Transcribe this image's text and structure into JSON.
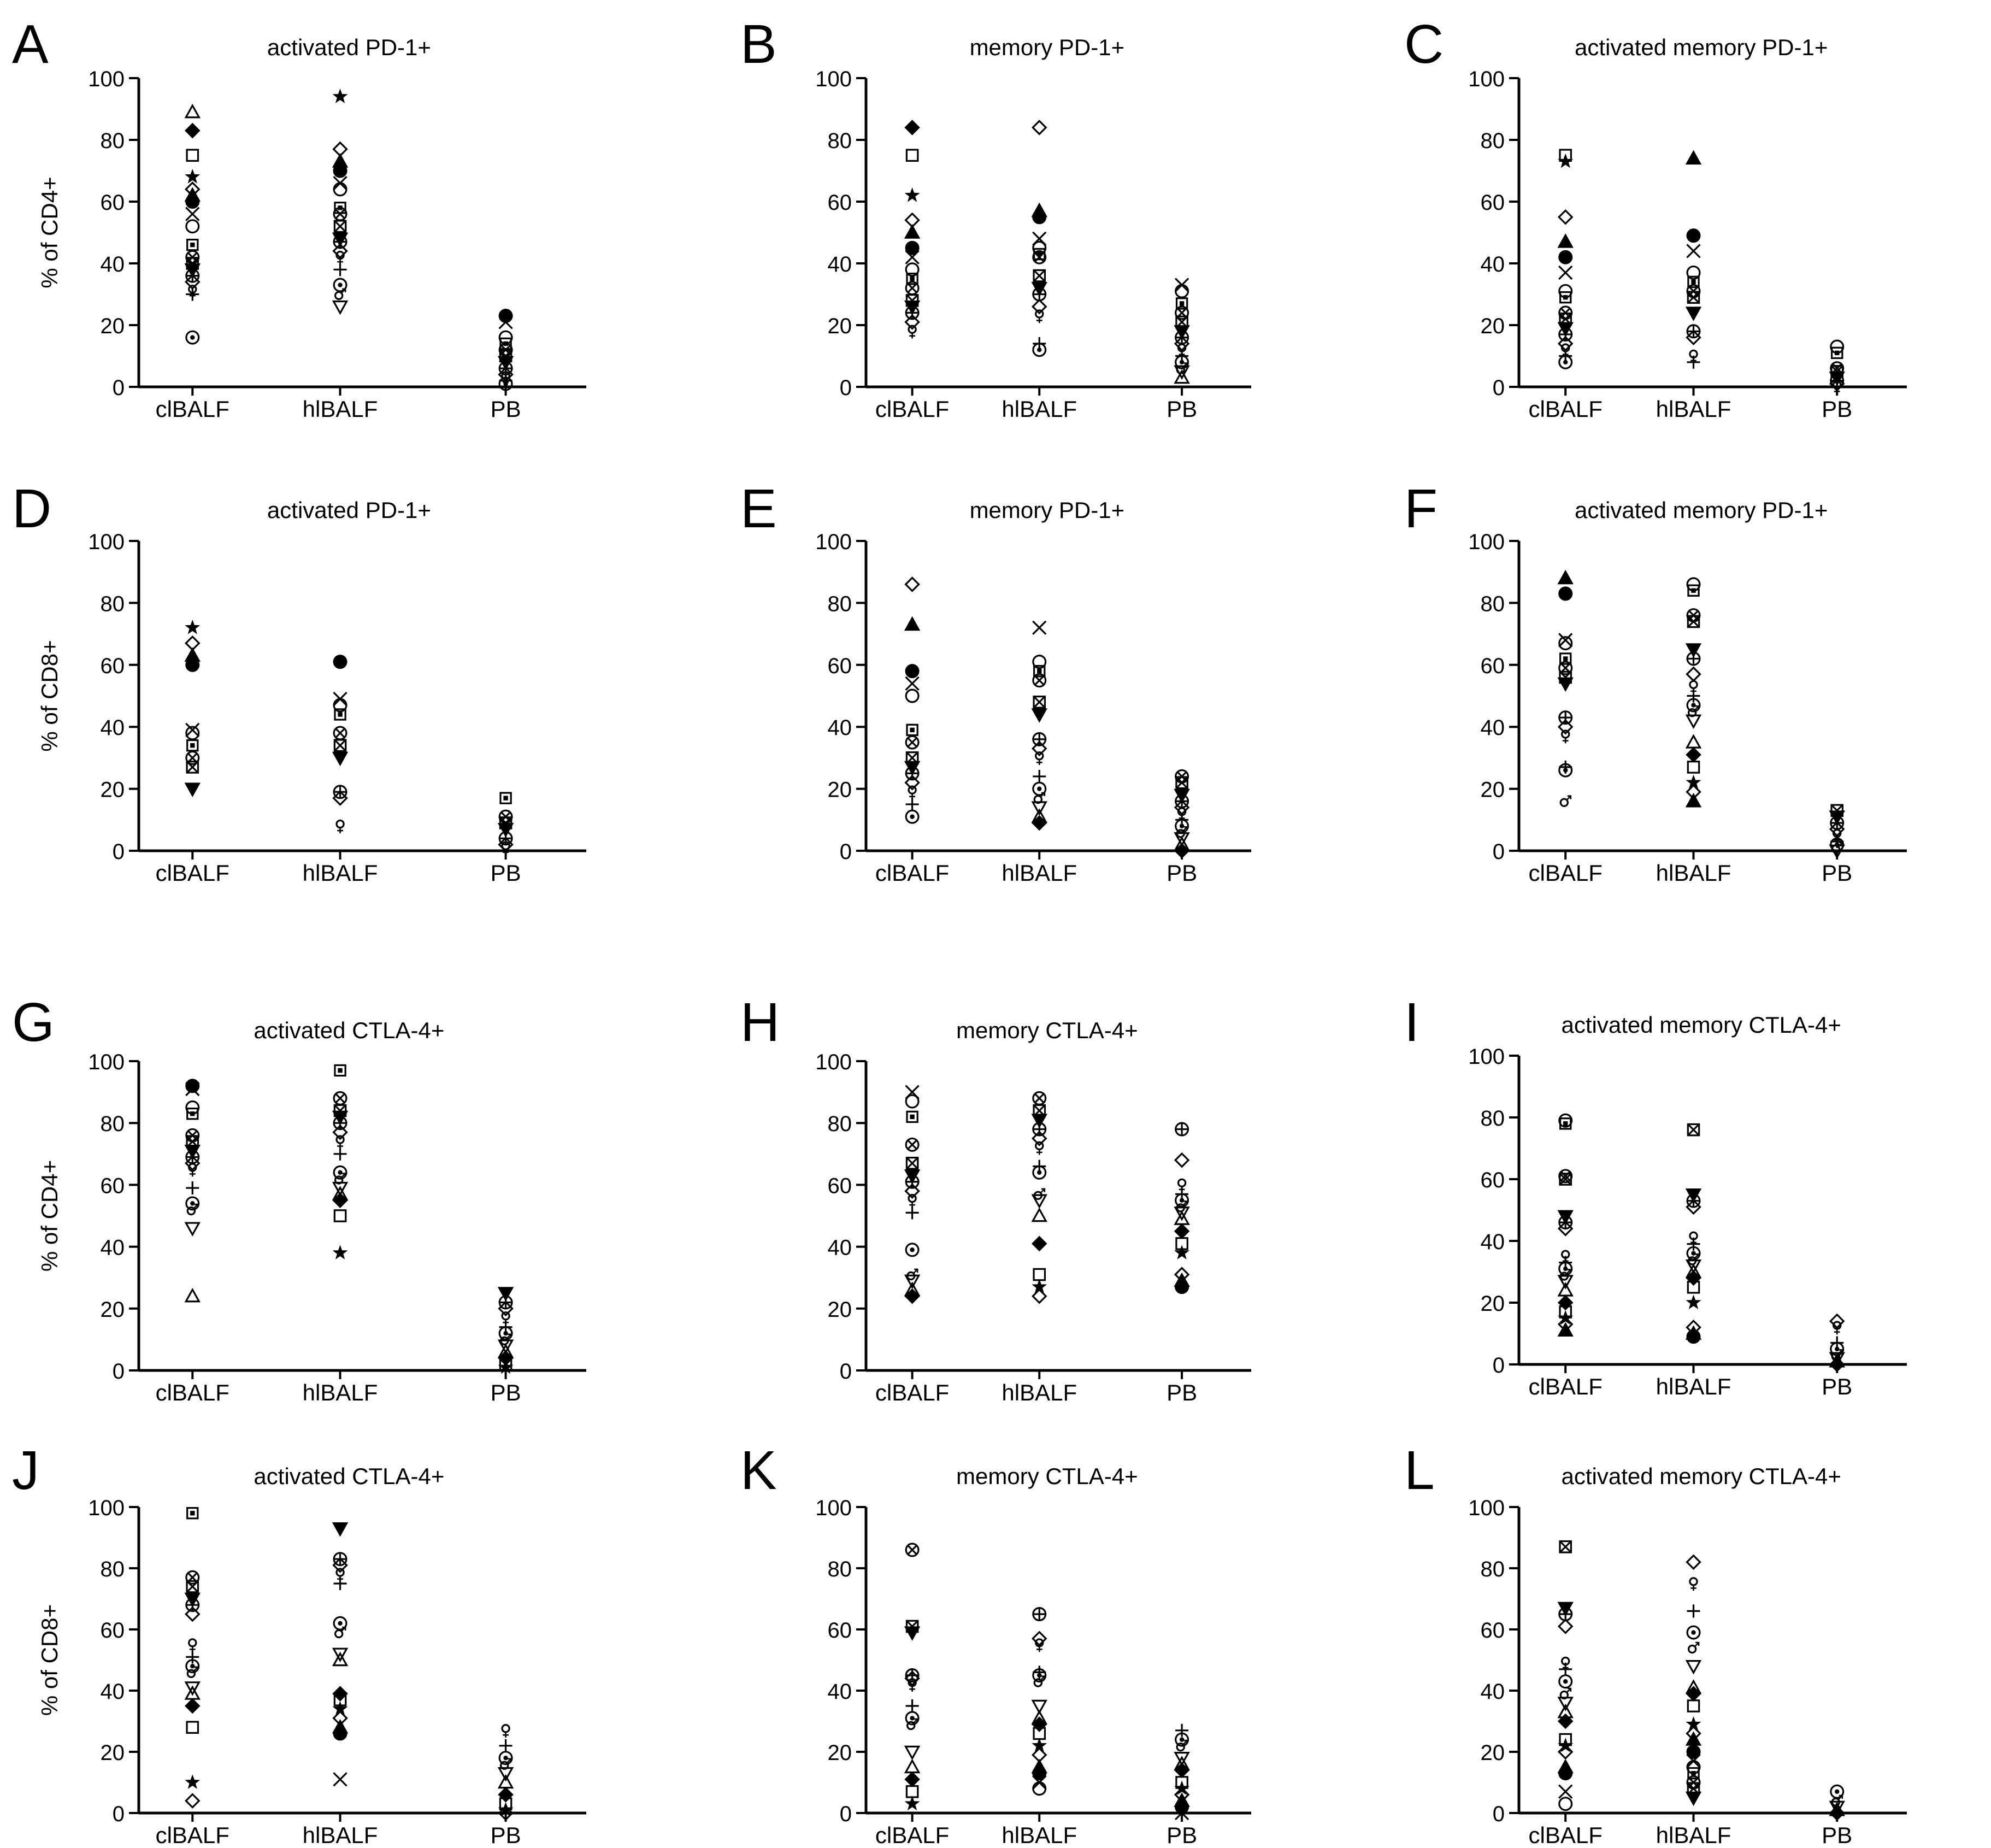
{
  "chart_data": [
    {
      "letter": "A",
      "title": "activated PD-1+",
      "type": "scatter",
      "ylabel": "% of CD4+",
      "ylim": [
        0,
        100
      ],
      "yticks": [
        0,
        20,
        40,
        60,
        80,
        100
      ],
      "categories": [
        "clBALF",
        "hlBALF",
        "PB"
      ],
      "groups": [
        [
          89,
          83,
          75,
          68,
          64,
          62,
          60,
          56,
          52,
          46,
          42,
          40,
          38,
          36,
          34,
          31,
          30,
          16
        ],
        [
          94,
          77,
          73,
          70,
          66,
          64,
          58,
          56,
          52,
          48,
          47,
          44,
          42,
          38,
          33,
          30,
          26
        ],
        [
          23,
          21,
          16,
          14,
          12,
          10,
          8,
          6,
          4,
          3,
          2,
          1
        ]
      ]
    },
    {
      "letter": "B",
      "title": "memory PD-1+",
      "type": "scatter",
      "ylabel": "",
      "ylim": [
        0,
        100
      ],
      "yticks": [
        0,
        20,
        40,
        60,
        80,
        100
      ],
      "categories": [
        "clBALF",
        "hlBALF",
        "PB"
      ],
      "groups": [
        [
          84,
          75,
          62,
          54,
          50,
          45,
          42,
          38,
          35,
          32,
          28,
          26,
          24,
          21,
          18
        ],
        [
          84,
          57,
          55,
          48,
          45,
          43,
          42,
          36,
          32,
          30,
          26,
          23,
          14,
          12
        ],
        [
          33,
          31,
          27,
          24,
          21,
          18,
          16,
          14,
          12,
          10,
          8,
          6,
          5,
          3
        ]
      ]
    },
    {
      "letter": "C",
      "title": "activated memory PD-1+",
      "type": "scatter",
      "ylabel": "",
      "ylim": [
        0,
        100
      ],
      "yticks": [
        0,
        20,
        40,
        60,
        80,
        100
      ],
      "categories": [
        "clBALF",
        "hlBALF",
        "PB"
      ],
      "groups": [
        [
          75,
          73,
          55,
          47,
          42,
          37,
          31,
          29,
          24,
          22,
          19,
          17,
          14,
          12,
          10,
          8
        ],
        [
          74,
          49,
          44,
          37,
          34,
          31,
          29,
          24,
          18,
          16,
          10,
          8
        ],
        [
          13,
          11,
          6,
          5,
          3,
          2,
          1,
          0
        ]
      ]
    },
    {
      "letter": "D",
      "title": "activated PD-1+",
      "type": "scatter",
      "ylabel": "% of CD8+",
      "ylim": [
        0,
        100
      ],
      "yticks": [
        0,
        20,
        40,
        60,
        80,
        100
      ],
      "categories": [
        "clBALF",
        "hlBALF",
        "PB"
      ],
      "groups": [
        [
          72,
          67,
          63,
          60,
          39,
          38,
          34,
          30,
          27,
          20
        ],
        [
          61,
          49,
          47,
          44,
          38,
          34,
          30,
          19,
          17,
          8
        ],
        [
          17,
          11,
          9,
          7,
          4,
          2,
          1
        ]
      ]
    },
    {
      "letter": "E",
      "title": "memory PD-1+",
      "type": "scatter",
      "ylabel": "",
      "ylim": [
        0,
        100
      ],
      "yticks": [
        0,
        20,
        40,
        60,
        80,
        100
      ],
      "categories": [
        "clBALF",
        "hlBALF",
        "PB"
      ],
      "groups": [
        [
          86,
          73,
          58,
          54,
          50,
          39,
          35,
          30,
          27,
          25,
          22,
          19,
          15,
          11
        ],
        [
          72,
          61,
          58,
          55,
          48,
          44,
          36,
          33,
          30,
          24,
          20,
          17,
          14,
          11,
          9
        ],
        [
          24,
          22,
          18,
          16,
          14,
          12,
          10,
          8,
          6,
          4,
          2,
          0
        ]
      ]
    },
    {
      "letter": "F",
      "title": "activated memory PD-1+",
      "type": "scatter",
      "ylabel": "",
      "ylim": [
        0,
        100
      ],
      "yticks": [
        0,
        20,
        40,
        60,
        80,
        100
      ],
      "categories": [
        "clBALF",
        "hlBALF",
        "PB"
      ],
      "groups": [
        [
          88,
          83,
          68,
          67,
          62,
          59,
          56,
          54,
          43,
          40,
          37,
          27,
          26,
          16
        ],
        [
          86,
          84,
          76,
          74,
          65,
          62,
          57,
          53,
          50,
          47,
          45,
          42,
          35,
          31,
          27,
          22,
          19,
          16
        ],
        [
          13,
          11,
          9,
          7,
          5,
          3,
          2,
          1,
          0
        ]
      ]
    },
    {
      "letter": "G",
      "title": "activated CTLA-4+",
      "type": "scatter",
      "ylabel": "% of CD4+",
      "ylim": [
        0,
        100
      ],
      "yticks": [
        0,
        20,
        40,
        60,
        80,
        100
      ],
      "categories": [
        "clBALF",
        "hlBALF",
        "PB"
      ],
      "groups": [
        [
          92,
          91,
          85,
          83,
          76,
          74,
          71,
          69,
          67,
          65,
          59,
          54,
          52,
          46,
          24
        ],
        [
          97,
          88,
          84,
          82,
          80,
          77,
          74,
          70,
          64,
          62,
          59,
          57,
          55,
          50,
          38
        ],
        [
          25,
          22,
          20,
          17,
          14,
          12,
          10,
          8,
          6,
          4,
          2,
          1
        ]
      ]
    },
    {
      "letter": "H",
      "title": "memory CTLA-4+",
      "type": "scatter",
      "ylabel": "",
      "ylim": [
        0,
        100
      ],
      "yticks": [
        0,
        20,
        40,
        60,
        80,
        100
      ],
      "categories": [
        "clBALF",
        "hlBALF",
        "PB"
      ],
      "groups": [
        [
          90,
          87,
          82,
          73,
          67,
          63,
          61,
          58,
          55,
          51,
          39,
          31,
          29,
          26,
          24
        ],
        [
          88,
          84,
          81,
          78,
          75,
          72,
          66,
          64,
          57,
          55,
          50,
          41,
          31,
          27,
          24
        ],
        [
          78,
          68,
          60,
          57,
          55,
          53,
          51,
          49,
          45,
          41,
          38,
          31,
          29,
          27
        ]
      ]
    },
    {
      "letter": "I",
      "title": "activated memory CTLA-4+",
      "type": "scatter",
      "ylabel": "",
      "ylim": [
        0,
        100
      ],
      "yticks": [
        0,
        20,
        40,
        60,
        80,
        100
      ],
      "categories": [
        "clBALF",
        "hlBALF",
        "PB"
      ],
      "groups": [
        [
          79,
          78,
          61,
          60,
          48,
          46,
          44,
          35,
          33,
          31,
          29,
          27,
          24,
          20,
          17,
          15,
          13,
          11
        ],
        [
          76,
          55,
          53,
          51,
          41,
          39,
          36,
          34,
          32,
          30,
          28,
          25,
          20,
          12,
          10,
          9
        ],
        [
          14,
          12,
          7,
          5,
          3,
          2,
          1,
          0
        ]
      ]
    },
    {
      "letter": "J",
      "title": "activated CTLA-4+",
      "type": "scatter",
      "ylabel": "% of CD8+",
      "ylim": [
        0,
        100
      ],
      "yticks": [
        0,
        20,
        40,
        60,
        80,
        100
      ],
      "categories": [
        "clBALF",
        "hlBALF",
        "PB"
      ],
      "groups": [
        [
          98,
          77,
          74,
          70,
          68,
          65,
          55,
          51,
          48,
          46,
          41,
          39,
          35,
          28,
          10,
          4
        ],
        [
          93,
          83,
          81,
          78,
          75,
          62,
          59,
          52,
          50,
          39,
          37,
          34,
          31,
          28,
          26,
          11
        ],
        [
          27,
          22,
          18,
          16,
          13,
          10,
          6,
          3,
          1,
          0
        ]
      ]
    },
    {
      "letter": "K",
      "title": "memory CTLA-4+",
      "type": "scatter",
      "ylabel": "",
      "ylim": [
        0,
        100
      ],
      "yticks": [
        0,
        20,
        40,
        60,
        80,
        100
      ],
      "categories": [
        "clBALF",
        "hlBALF",
        "PB"
      ],
      "groups": [
        [
          86,
          61,
          59,
          45,
          44,
          42,
          35,
          31,
          29,
          20,
          15,
          11,
          7,
          3
        ],
        [
          65,
          57,
          55,
          46,
          45,
          43,
          35,
          31,
          29,
          26,
          22,
          19,
          15,
          13,
          10,
          8
        ],
        [
          27,
          24,
          22,
          18,
          16,
          14,
          10,
          8,
          6,
          4,
          2,
          0
        ]
      ]
    },
    {
      "letter": "L",
      "title": "activated memory CTLA-4+",
      "type": "scatter",
      "ylabel": "",
      "ylim": [
        0,
        100
      ],
      "yticks": [
        0,
        20,
        40,
        60,
        80,
        100
      ],
      "categories": [
        "clBALF",
        "hlBALF",
        "PB"
      ],
      "groups": [
        [
          87,
          67,
          65,
          61,
          49,
          47,
          43,
          39,
          36,
          33,
          30,
          24,
          22,
          20,
          15,
          13,
          7,
          3
        ],
        [
          82,
          75,
          66,
          59,
          54,
          48,
          41,
          39,
          35,
          29,
          26,
          24,
          20,
          17,
          15,
          13,
          10,
          8,
          5
        ],
        [
          7,
          4,
          2,
          1,
          0
        ]
      ]
    }
  ]
}
